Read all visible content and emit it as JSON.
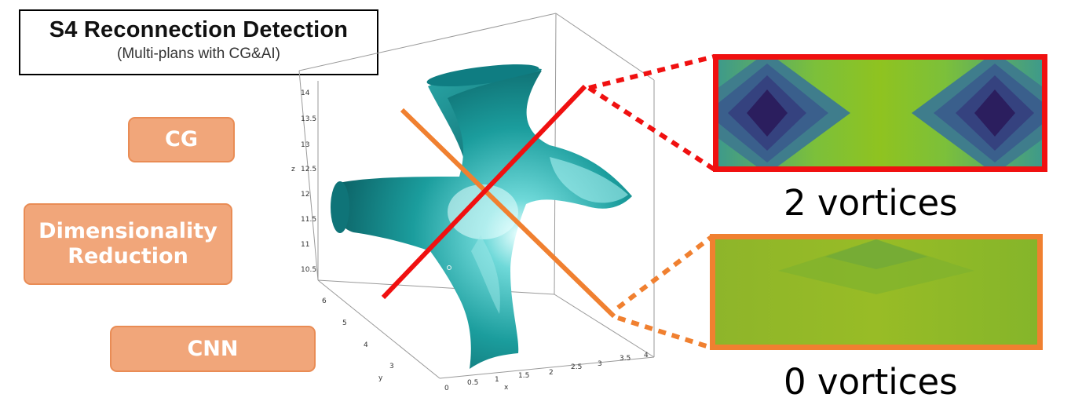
{
  "title": {
    "main": "S4 Reconnection Detection",
    "sub": "(Multi-plans with CG&AI)"
  },
  "steps": {
    "cg": "CG",
    "dimensionality_line1": "Dimensionality",
    "dimensionality_line2": "Reduction",
    "cnn": "CNN"
  },
  "plot": {
    "z_label": "z",
    "y_label": "y",
    "x_label": "x",
    "z_ticks": [
      "14",
      "13.5",
      "13",
      "12.5",
      "12",
      "11.5",
      "11",
      "10.5"
    ],
    "y_ticks": [
      "6",
      "5",
      "4",
      "3"
    ],
    "x_ticks": [
      "0",
      "0.5",
      "1",
      "1.5",
      "2",
      "2.5",
      "3",
      "3.5",
      "4"
    ],
    "surface_color": "#1a9a9a",
    "plane_colors": {
      "red": "#f01010",
      "orange": "#f08030"
    }
  },
  "slices": {
    "red_label": "2 vortices",
    "orange_label": "0 vortices"
  }
}
